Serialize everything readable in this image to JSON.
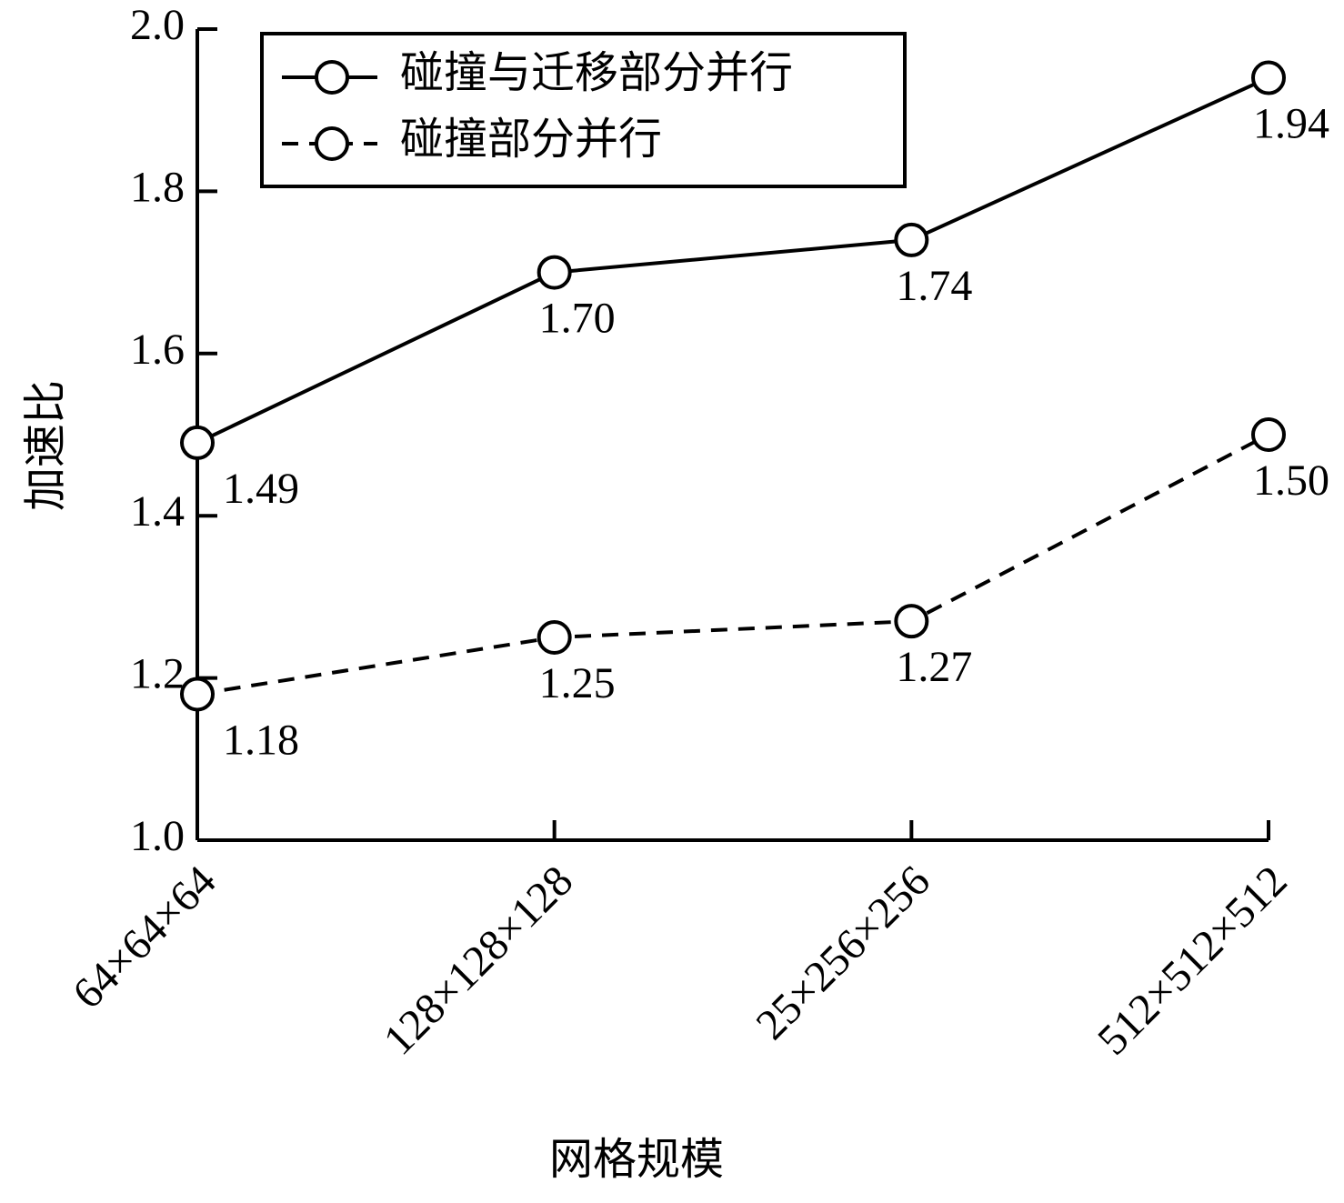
{
  "chart_data": {
    "type": "line",
    "x_label": "网格规模",
    "y_label": "加速比",
    "categories": [
      "64×64×64",
      "128×128×128",
      "25×256×256",
      "512×512×512"
    ],
    "series": [
      {
        "name": "碰撞与迁移部分并行",
        "color": "#000000",
        "dash": "solid",
        "values": [
          1.49,
          1.7,
          1.74,
          1.94
        ],
        "value_labels": [
          "1.49",
          "1.70",
          "1.74",
          "1.94"
        ]
      },
      {
        "name": "碰撞部分并行",
        "color": "#000000",
        "dash": "dashed",
        "values": [
          1.18,
          1.25,
          1.27,
          1.5
        ],
        "value_labels": [
          "1.18",
          "1.25",
          "1.27",
          "1.50"
        ]
      }
    ],
    "ylim": [
      1.0,
      2.0
    ],
    "yticks": [
      {
        "value": 1.0,
        "label": "1.0"
      },
      {
        "value": 1.2,
        "label": "1.2"
      },
      {
        "value": 1.4,
        "label": "1.4"
      },
      {
        "value": 1.6,
        "label": "1.6"
      },
      {
        "value": 1.8,
        "label": "1.8"
      },
      {
        "value": 2.0,
        "label": "2.0"
      }
    ],
    "legend": "upper left"
  }
}
